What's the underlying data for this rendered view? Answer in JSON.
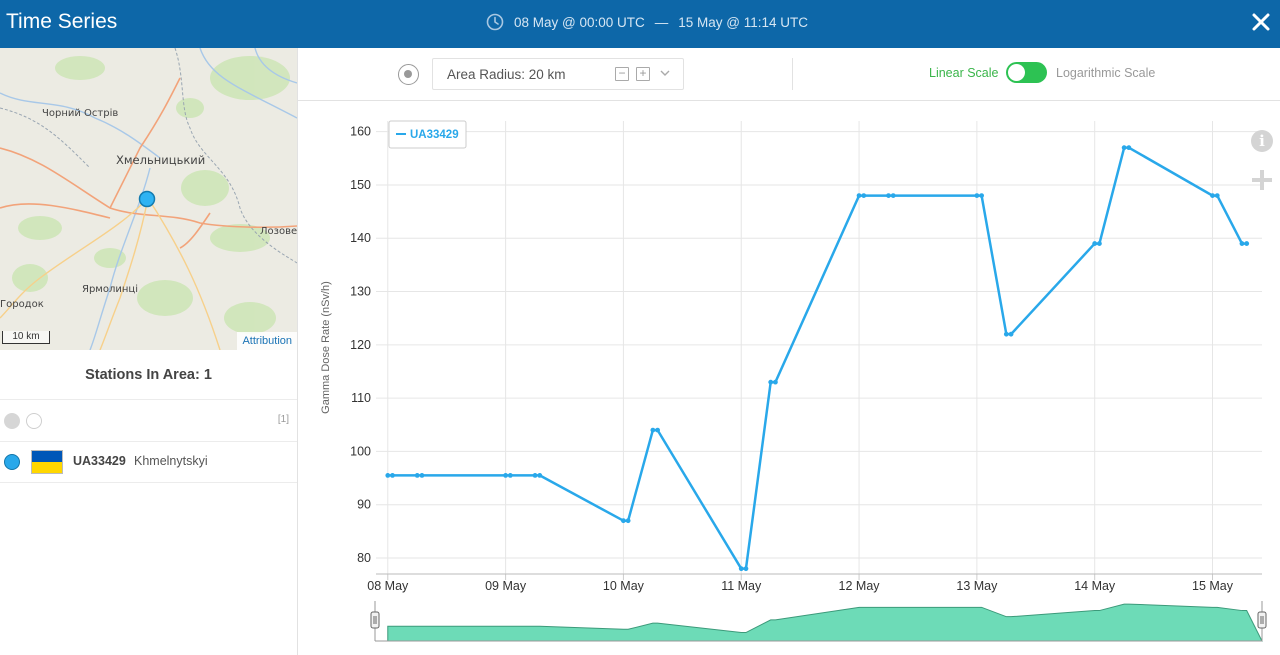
{
  "header": {
    "title": "Time Series",
    "range_start": "08 May @ 00:00 UTC",
    "range_sep": "—",
    "range_end": "15 May @ 11:14 UTC"
  },
  "map": {
    "labels": [
      "Чорний Острів",
      "Хмельницький",
      "Лозове",
      "Ярмолинці",
      "Городок"
    ],
    "scale": "10 km",
    "attribution": "Attribution"
  },
  "stations": {
    "title": "Stations In Area: 1",
    "count": "[1]",
    "items": [
      {
        "id": "UA33429",
        "name": "Khmelnytskyi"
      }
    ]
  },
  "toolbar": {
    "radius_label": "Area Radius: 20 km",
    "minus": "−",
    "plus": "+",
    "linear_label": "Linear Scale",
    "log_label": "Logarithmic Scale"
  },
  "colors": {
    "header": "#0d67a8",
    "series": "#29a8ea",
    "navigator_fill": "#6ddbb7",
    "toggle": "#2dc253"
  },
  "chart_data": {
    "type": "line",
    "ylabel": "Gamma Dose Rate (nSv/h)",
    "xlabel": "",
    "ylim": [
      77,
      162
    ],
    "yticks": [
      80,
      90,
      100,
      110,
      120,
      130,
      140,
      150,
      160
    ],
    "xticks": [
      "08 May",
      "09 May",
      "10 May",
      "11 May",
      "12 May",
      "13 May",
      "14 May",
      "15 May"
    ],
    "xlim_days": [
      7.9,
      15.42
    ],
    "grid": true,
    "legend": "top-left",
    "series": [
      {
        "name": "UA33429",
        "x_days": [
          8.0,
          8.04,
          8.25,
          8.29,
          9.0,
          9.04,
          9.25,
          9.29,
          10.0,
          10.04,
          10.25,
          10.29,
          11.0,
          11.04,
          11.25,
          11.29,
          12.0,
          12.04,
          12.25,
          12.29,
          13.0,
          13.04,
          13.25,
          13.29,
          14.0,
          14.04,
          14.25,
          14.29,
          15.0,
          15.04,
          15.25,
          15.29
        ],
        "values": [
          95.5,
          95.5,
          95.5,
          95.5,
          95.5,
          95.5,
          95.5,
          95.5,
          87,
          87,
          104,
          104,
          78,
          78,
          113,
          113,
          148,
          148,
          148,
          148,
          148,
          148,
          122,
          122,
          139,
          139,
          157,
          157,
          148,
          148,
          139,
          139
        ]
      }
    ]
  }
}
